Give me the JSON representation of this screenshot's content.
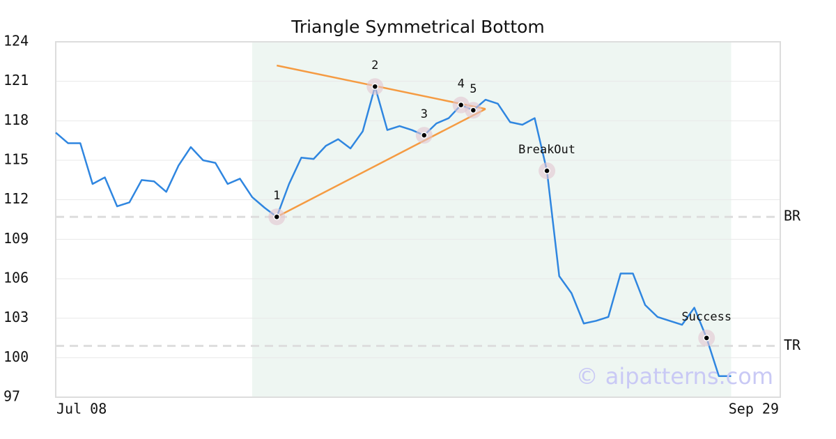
{
  "chart_data": {
    "type": "line",
    "title": "Triangle Symmetrical Bottom",
    "categories": [
      "Jul 08",
      null,
      null,
      null,
      null,
      null,
      null,
      null,
      null,
      null,
      null,
      null,
      null,
      null,
      null,
      null,
      null,
      null,
      null,
      null,
      null,
      null,
      null,
      null,
      null,
      null,
      null,
      null,
      null,
      null,
      null,
      null,
      null,
      null,
      null,
      null,
      null,
      null,
      null,
      null,
      null,
      null,
      null,
      null,
      null,
      null,
      null,
      null,
      null,
      null,
      null,
      null,
      null,
      null,
      null,
      null,
      null,
      null,
      null,
      "Sep 29"
    ],
    "series": [
      {
        "color": "#2f86e0",
        "values": [
          117.1,
          116.3,
          116.3,
          113.2,
          113.7,
          111.5,
          111.8,
          113.5,
          113.4,
          112.6,
          114.6,
          116.0,
          115.0,
          114.8,
          113.2,
          113.6,
          112.2,
          111.4,
          110.7,
          113.2,
          115.2,
          115.1,
          116.1,
          116.6,
          115.9,
          117.2,
          120.6,
          117.3,
          117.6,
          117.3,
          116.9,
          117.8,
          118.2,
          119.2,
          118.8,
          119.6,
          119.3,
          117.9,
          117.7,
          118.2,
          114.2,
          106.2,
          104.9,
          102.6,
          102.8,
          103.1,
          106.4,
          106.4,
          104.0,
          103.1,
          102.8,
          102.5,
          103.8,
          101.5,
          98.6,
          98.6,
          null,
          null,
          null,
          null
        ]
      }
    ],
    "ylim": [
      97,
      124
    ],
    "yticks": [
      97,
      100,
      103,
      106,
      109,
      112,
      115,
      118,
      121,
      124
    ],
    "grid": true,
    "highlight": {
      "from": 16,
      "to": 55,
      "color": "#eef6f2"
    },
    "trend_lines": [
      {
        "color": "#f59b42",
        "x": [
          18,
          35
        ],
        "values": [
          122.2,
          118.9
        ]
      },
      {
        "color": "#f59b42",
        "x": [
          18,
          35
        ],
        "values": [
          110.7,
          118.9
        ]
      }
    ],
    "levels": [
      {
        "label": "BR",
        "value": 110.7
      },
      {
        "label": "TR",
        "value": 100.9
      }
    ],
    "markers": [
      {
        "label": "1",
        "index": 18,
        "value": 110.7
      },
      {
        "label": "2",
        "index": 26,
        "value": 120.6
      },
      {
        "label": "3",
        "index": 30,
        "value": 116.9
      },
      {
        "label": "4",
        "index": 33,
        "value": 119.2
      },
      {
        "label": "5",
        "index": 34,
        "value": 118.8
      },
      {
        "label": "BreakOut",
        "index": 40,
        "value": 114.2
      },
      {
        "label": "Success",
        "index": 53,
        "value": 101.5
      }
    ],
    "watermark": "© aipatterns.com"
  }
}
